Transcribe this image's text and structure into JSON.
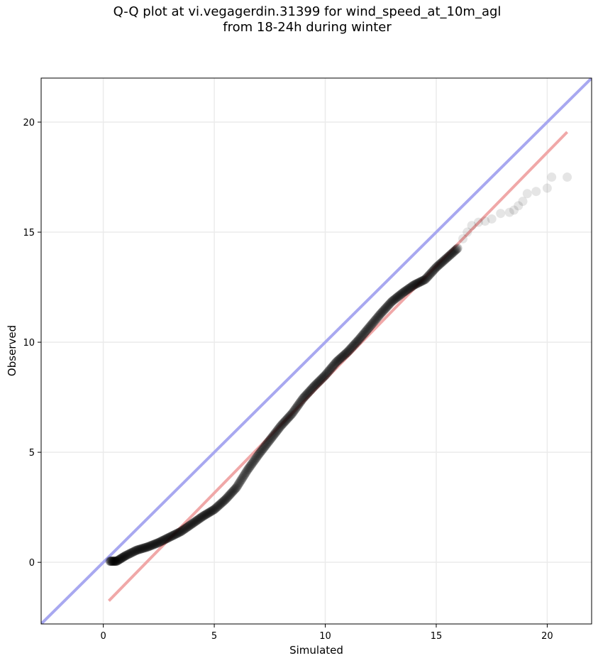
{
  "chart_data": {
    "type": "scatter",
    "title_lines": [
      "Q-Q plot at vi.vegagerdin.31399 for wind_speed_at_10m_agl",
      "from 18-24h during winter"
    ],
    "xlabel": "Simulated",
    "ylabel": "Observed",
    "xlim": [
      -2.8,
      22.0
    ],
    "ylim": [
      -2.8,
      22.0
    ],
    "xticks": [
      0,
      5,
      10,
      15,
      20
    ],
    "yticks": [
      0,
      5,
      10,
      15,
      20
    ],
    "grid": true,
    "quantile_curve": [
      [
        0.3,
        0.05
      ],
      [
        0.6,
        0.05
      ],
      [
        1.0,
        0.3
      ],
      [
        1.5,
        0.55
      ],
      [
        2.0,
        0.7
      ],
      [
        2.5,
        0.9
      ],
      [
        3.0,
        1.15
      ],
      [
        3.5,
        1.4
      ],
      [
        4.0,
        1.75
      ],
      [
        4.5,
        2.1
      ],
      [
        5.0,
        2.4
      ],
      [
        5.5,
        2.85
      ],
      [
        6.0,
        3.4
      ],
      [
        6.5,
        4.2
      ],
      [
        7.0,
        4.9
      ],
      [
        7.5,
        5.55
      ],
      [
        8.0,
        6.2
      ],
      [
        8.5,
        6.75
      ],
      [
        9.0,
        7.45
      ],
      [
        9.5,
        8.0
      ],
      [
        10.0,
        8.5
      ],
      [
        10.5,
        9.1
      ],
      [
        11.0,
        9.55
      ],
      [
        11.5,
        10.1
      ],
      [
        12.0,
        10.7
      ],
      [
        12.5,
        11.3
      ],
      [
        13.0,
        11.85
      ],
      [
        13.5,
        12.25
      ],
      [
        14.0,
        12.6
      ],
      [
        14.5,
        12.85
      ],
      [
        15.0,
        13.4
      ],
      [
        15.5,
        13.85
      ],
      [
        16.0,
        14.3
      ]
    ],
    "tail_points": [
      [
        16.2,
        14.7
      ],
      [
        16.4,
        15.0
      ],
      [
        16.6,
        15.3
      ],
      [
        16.9,
        15.45
      ],
      [
        17.2,
        15.5
      ],
      [
        17.5,
        15.6
      ],
      [
        17.9,
        15.85
      ],
      [
        18.3,
        15.9
      ],
      [
        18.5,
        16.0
      ],
      [
        18.7,
        16.2
      ],
      [
        18.9,
        16.4
      ],
      [
        19.1,
        16.75
      ],
      [
        19.5,
        16.85
      ],
      [
        20.0,
        17.0
      ],
      [
        20.2,
        17.5
      ],
      [
        20.9,
        17.5
      ]
    ],
    "series": [
      {
        "kind": "identity_line",
        "color": "#a8a8f0",
        "x": [
          -2.8,
          22.0
        ],
        "y": [
          -2.8,
          22.0
        ]
      },
      {
        "kind": "fit_line",
        "color": "#f0a8a8",
        "x": [
          0.25,
          20.9
        ],
        "y": [
          -1.75,
          19.55
        ]
      }
    ],
    "point_color": "#000000"
  }
}
